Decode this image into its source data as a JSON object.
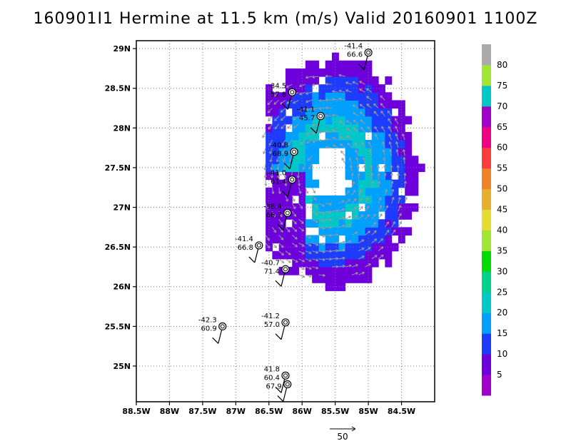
{
  "title": "160901I1 Hermine at 11.5 km (m/s) Valid 20160901 1100Z",
  "chart_data": {
    "type": "heatmap",
    "title": "160901I1 Hermine at 11.5 km (m/s) Valid 20160901 1100Z",
    "xlabel": "",
    "ylabel": "",
    "xlim": [
      -88.5,
      -84.0
    ],
    "ylim": [
      24.55,
      29.1
    ],
    "x_ticks": [
      {
        "value": -88.5,
        "label": "88.5W"
      },
      {
        "value": -88.0,
        "label": "88W"
      },
      {
        "value": -87.5,
        "label": "87.5W"
      },
      {
        "value": -87.0,
        "label": "87W"
      },
      {
        "value": -86.5,
        "label": "86.5W"
      },
      {
        "value": -86.0,
        "label": "86W"
      },
      {
        "value": -85.5,
        "label": "85.5W"
      },
      {
        "value": -85.0,
        "label": "85W"
      },
      {
        "value": -84.5,
        "label": "84.5W"
      }
    ],
    "y_ticks": [
      {
        "value": 25.0,
        "label": "25N"
      },
      {
        "value": 25.5,
        "label": "25.5N"
      },
      {
        "value": 26.0,
        "label": "26N"
      },
      {
        "value": 26.5,
        "label": "26.5N"
      },
      {
        "value": 27.0,
        "label": "27N"
      },
      {
        "value": 27.5,
        "label": "27.5N"
      },
      {
        "value": 28.0,
        "label": "28N"
      },
      {
        "value": 28.5,
        "label": "28.5N"
      },
      {
        "value": 29.0,
        "label": "29N"
      }
    ],
    "grid": true,
    "colorbar": {
      "levels": [
        0,
        5,
        10,
        15,
        20,
        25,
        30,
        35,
        40,
        45,
        50,
        55,
        60,
        65,
        70,
        75,
        80,
        85
      ],
      "labels": [
        "5",
        "10",
        "15",
        "20",
        "25",
        "30",
        "35",
        "40",
        "45",
        "50",
        "55",
        "60",
        "65",
        "70",
        "75",
        "80"
      ],
      "colors": [
        "#a000c8",
        "#6e00dc",
        "#1e3cff",
        "#00a0ff",
        "#00c8c8",
        "#00d28c",
        "#00dc00",
        "#a0e632",
        "#e6dc32",
        "#e6af2d",
        "#f08228",
        "#fa3c3c",
        "#f00082",
        "#a000c8",
        "#00c8c8",
        "#a0e632",
        "#aaaaaa"
      ]
    },
    "storm_center": {
      "lon": -85.6,
      "lat": 27.4
    },
    "eye_radius_deg": 0.25,
    "wind_annulus": [
      {
        "r": 0.3,
        "value": 10
      },
      {
        "r": 0.5,
        "value": 15
      },
      {
        "r": 0.7,
        "value": 20
      },
      {
        "r": 0.95,
        "value": 15
      },
      {
        "r": 1.2,
        "value": 10
      },
      {
        "r": 1.45,
        "value": 5
      }
    ],
    "vector_reference": {
      "value": 50,
      "label": "50"
    },
    "dropsondes": [
      {
        "lon": -85.0,
        "lat": 28.95,
        "temp": "-41.4",
        "value": "66.6"
      },
      {
        "lon": -86.15,
        "lat": 28.45,
        "temp": "-34.5",
        "value": "57.8"
      },
      {
        "lon": -85.72,
        "lat": 28.15,
        "temp": "-41.1",
        "value": "45.7"
      },
      {
        "lon": -86.12,
        "lat": 27.7,
        "temp": "-40.8",
        "value": "68.9"
      },
      {
        "lon": -86.15,
        "lat": 27.35,
        "temp": "-41.0",
        "value": "61.4"
      },
      {
        "lon": -86.22,
        "lat": 26.93,
        "temp": "-38.4",
        "value": "66.7"
      },
      {
        "lon": -86.65,
        "lat": 26.52,
        "temp": "-41.4",
        "value": "66.8"
      },
      {
        "lon": -86.25,
        "lat": 26.22,
        "temp": "-40.7",
        "value": "71.4"
      },
      {
        "lon": -86.25,
        "lat": 25.55,
        "temp": "-41.2",
        "value": "57.0"
      },
      {
        "lon": -87.2,
        "lat": 25.5,
        "temp": "-42.3",
        "value": "60.9"
      },
      {
        "lon": -86.25,
        "lat": 24.88,
        "temp": "41.8",
        "value": "60.4"
      },
      {
        "lon": -86.22,
        "lat": 24.77,
        "temp": "",
        "value": "67.9"
      }
    ]
  }
}
